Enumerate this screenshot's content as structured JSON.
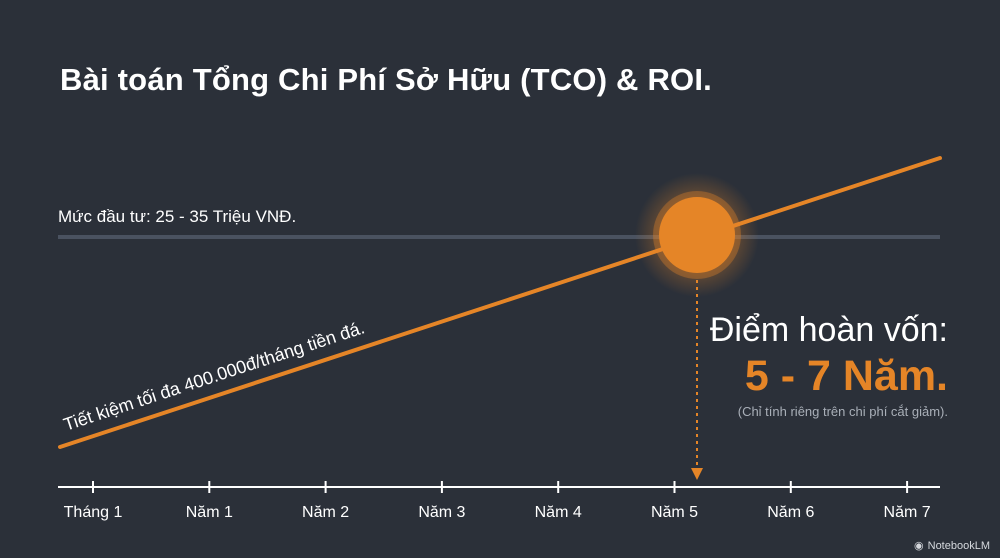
{
  "title": "Bài toán Tổng Chi Phí Sở Hữu (TCO) & ROI.",
  "chart_data": {
    "type": "line",
    "categories": [
      "Tháng 1",
      "Năm 1",
      "Năm 2",
      "Năm 3",
      "Năm 4",
      "Năm 5",
      "Năm 6",
      "Năm 7"
    ],
    "x": [
      0,
      1,
      2,
      3,
      4,
      5,
      6,
      7
    ],
    "series": [
      {
        "name": "Tiết kiệm tối đa 400.000đ/tháng tiền đá.",
        "values": [
          0,
          4.8,
          9.6,
          14.4,
          19.2,
          24.0,
          28.8,
          33.6
        ],
        "color": "#e58527"
      }
    ],
    "reference_line": {
      "label": "Mức đầu tư: 25 - 35 Triệu VNĐ.",
      "color": "#4a5260"
    },
    "breakeven": {
      "label": "Điểm hoàn vốn:",
      "value_text": "5 - 7 Năm.",
      "note": "(Chỉ tính riêng trên chi phí cắt giảm).",
      "color": "#e58527"
    },
    "axis_color": "#ffffff",
    "grid": false
  },
  "watermark": {
    "text": "NotebookLM",
    "icon": "notebooklm-logo-icon"
  }
}
